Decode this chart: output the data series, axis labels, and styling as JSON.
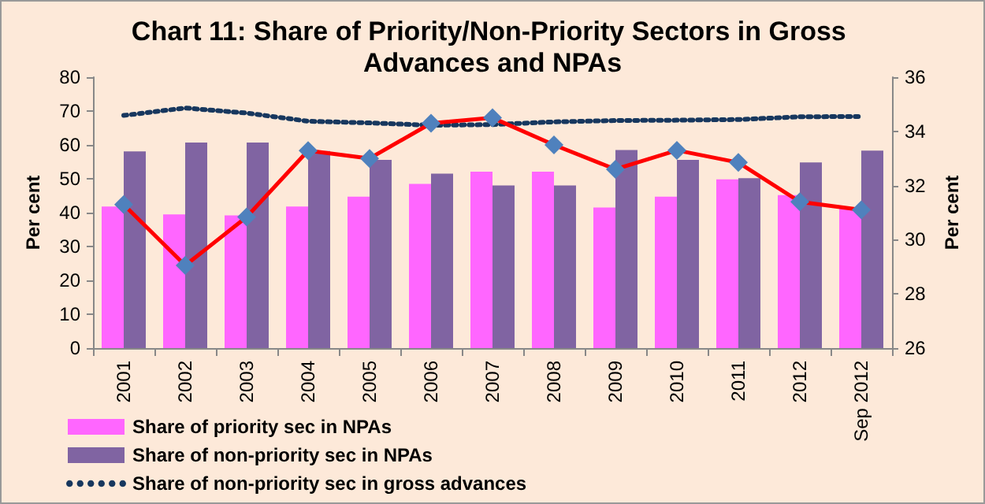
{
  "chart_data": {
    "type": "bar",
    "title": "Chart 11: Share of Priority/Non-Priority Sectors in Gross Advances and NPAs",
    "categories": [
      "2001",
      "2002",
      "2003",
      "2004",
      "2005",
      "2006",
      "2007",
      "2008",
      "2009",
      "2010",
      "2011",
      "2012",
      "Sep 2012"
    ],
    "series": [
      {
        "name": "Share of priority sec in NPAs",
        "color": "#ff66ff",
        "values": [
          41.8,
          39.5,
          39.2,
          41.8,
          44.7,
          48.5,
          52.1,
          52.1,
          41.5,
          44.7,
          49.8,
          45.2,
          41.2
        ]
      },
      {
        "name": "Share of non-priority sec in NPAs",
        "color": "#8064a2",
        "values": [
          58.1,
          60.7,
          60.7,
          58.2,
          55.6,
          51.5,
          48.0,
          48.0,
          58.5,
          55.6,
          50.2,
          54.8,
          58.3
        ]
      },
      {
        "name": "Share of non-priority sec in gross advances",
        "type": "line",
        "color": "#17375e",
        "line_style": "dotted",
        "marker": "none",
        "values": [
          68.7,
          70.9,
          69.4,
          67.0,
          66.5,
          65.8,
          66.0,
          66.8,
          67.2,
          67.3,
          67.5,
          68.3,
          68.4
        ]
      },
      {
        "type": "line",
        "axis": "y2",
        "color": "#ff0000",
        "line_style": "solid",
        "marker": "diamond",
        "values": [
          31.3,
          29.05,
          30.84,
          33.29,
          33.0,
          34.3,
          34.5,
          33.5,
          32.6,
          33.3,
          32.85,
          31.4,
          31.1
        ]
      }
    ],
    "ylabel": "Per cent",
    "y2label": "Per cent",
    "ylim": [
      0,
      80
    ],
    "yticks": [
      0,
      10,
      20,
      30,
      40,
      50,
      60,
      70,
      80
    ],
    "y2lim": [
      26,
      36
    ],
    "y2ticks": [
      26,
      28,
      30,
      32,
      34,
      36
    ],
    "grid": false,
    "legend": "bottom left"
  }
}
